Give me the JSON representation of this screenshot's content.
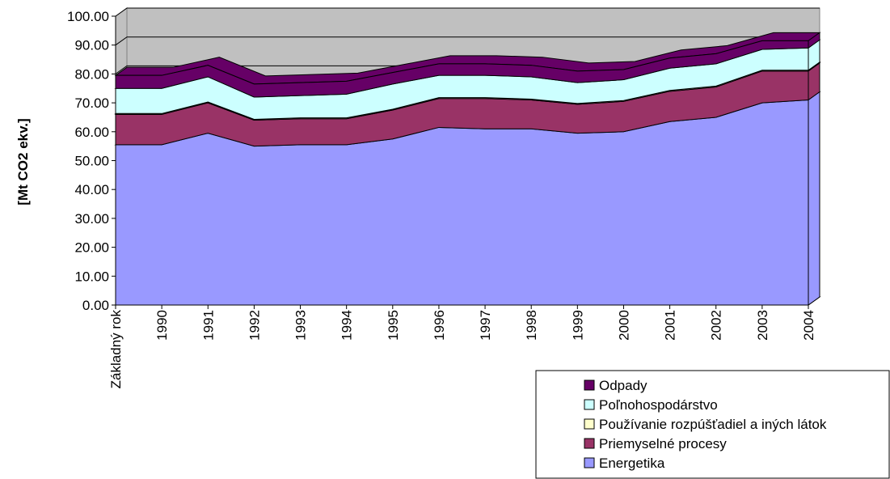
{
  "chart_data": {
    "type": "area3d_stacked",
    "y_label": "[Mt CO2 ekv.]",
    "categories": [
      "Základný rok",
      "1990",
      "1991",
      "1992",
      "1993",
      "1994",
      "1995",
      "1996",
      "1997",
      "1998",
      "1999",
      "2000",
      "2001",
      "2002",
      "2003",
      "2004"
    ],
    "series": [
      {
        "name": "Energetika",
        "color": "#9999ff",
        "values": [
          55.5,
          55.5,
          59.5,
          55,
          55.5,
          55.5,
          57.5,
          61.5,
          61,
          61,
          59.5,
          60,
          63.5,
          65,
          70,
          71
        ]
      },
      {
        "name": "Priemyselné procesy",
        "color": "#993366",
        "values": [
          10.5,
          10.5,
          10.5,
          9,
          9,
          9,
          10,
          10,
          10.5,
          10,
          10,
          10.5,
          10.5,
          10.5,
          11,
          10
        ]
      },
      {
        "name": "Používanie rozpúšťadiel a iných látok",
        "color": "#ffffcc",
        "values": [
          0.3,
          0.3,
          0.3,
          0.3,
          0.3,
          0.3,
          0.3,
          0.3,
          0.3,
          0.3,
          0.3,
          0.3,
          0.3,
          0.3,
          0.3,
          0.3
        ]
      },
      {
        "name": "Poľnohospodárstvo",
        "color": "#ccffff",
        "values": [
          8.7,
          8.7,
          8.7,
          7.7,
          7.7,
          8.2,
          8.7,
          7.7,
          7.7,
          7.7,
          7.2,
          7.2,
          7.7,
          7.7,
          7.2,
          7.7
        ]
      },
      {
        "name": "Odpady",
        "color": "#660066",
        "values": [
          4.5,
          4.5,
          4,
          4.5,
          4.5,
          4.5,
          4,
          4,
          4,
          4,
          4,
          3.5,
          3.5,
          3.5,
          3,
          2.5
        ]
      }
    ],
    "ylim": [
      0,
      100
    ],
    "yticks": [
      {
        "value": 0,
        "label": "0.00"
      },
      {
        "value": 10,
        "label": "10.00"
      },
      {
        "value": 20,
        "label": "20.00"
      },
      {
        "value": 30,
        "label": "30.00"
      },
      {
        "value": 40,
        "label": "40.00"
      },
      {
        "value": 50,
        "label": "50.00"
      },
      {
        "value": 60,
        "label": "60.00"
      },
      {
        "value": 70,
        "label": "70.00"
      },
      {
        "value": 80,
        "label": "80.00"
      },
      {
        "value": 90,
        "label": "90.00"
      },
      {
        "value": 100,
        "label": "100.00"
      }
    ],
    "grid": true,
    "legend": "bottom-right"
  }
}
